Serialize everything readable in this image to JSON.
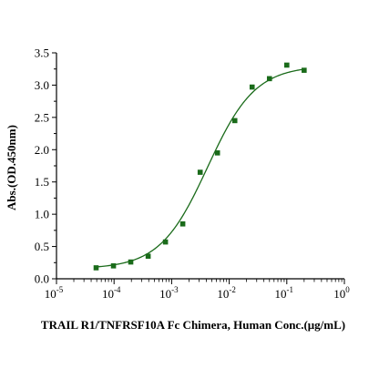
{
  "chart_data": {
    "type": "scatter",
    "title": "",
    "xlabel": "TRAIL R1/TNFRSF10A Fc Chimera, Human Conc.(μg/mL)",
    "ylabel": "Abs.(OD.450nm)",
    "x_scale": "log",
    "xlim": [
      1e-05,
      1
    ],
    "ylim": [
      0,
      3.5
    ],
    "x_ticks": [
      {
        "value": 1e-05,
        "base": "10",
        "exp": "-5"
      },
      {
        "value": 0.0001,
        "base": "10",
        "exp": "-4"
      },
      {
        "value": 0.001,
        "base": "10",
        "exp": "-3"
      },
      {
        "value": 0.01,
        "base": "10",
        "exp": "-2"
      },
      {
        "value": 0.1,
        "base": "10",
        "exp": "-1"
      },
      {
        "value": 1,
        "base": "10",
        "exp": "0"
      }
    ],
    "y_ticks": [
      "0.0",
      "0.5",
      "1.0",
      "1.5",
      "2.0",
      "2.5",
      "3.0",
      "3.5"
    ],
    "grid": false,
    "colors": {
      "series": "#1a6b1a",
      "axis": "#000000"
    },
    "series": [
      {
        "x": [
          4.88e-05,
          9.77e-05,
          0.000195,
          0.000391,
          0.000781,
          0.00156,
          0.00313,
          0.00625,
          0.0125,
          0.025,
          0.05,
          0.1,
          0.2
        ],
        "y": [
          0.17,
          0.2,
          0.26,
          0.35,
          0.57,
          0.85,
          1.65,
          1.95,
          2.45,
          2.97,
          3.1,
          3.31,
          3.23
        ]
      }
    ],
    "fit_curve": {
      "bottom": 0.155,
      "top": 3.3,
      "ec50": 0.0042,
      "hill": 1.05
    }
  }
}
